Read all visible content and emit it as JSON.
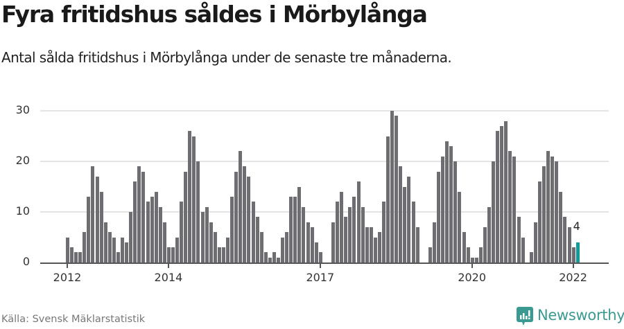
{
  "header": {
    "title": "Fyra fritidshus såldes i Mörbylånga",
    "subtitle": "Antal sålda fritidshus i Mörbylånga under de senaste tre månaderna."
  },
  "footer": {
    "source": "Källa: Svensk Mäklarstatistik",
    "brand": "Newsworthy"
  },
  "colors": {
    "bar": "#6e6d72",
    "highlight": "#119a97",
    "grid": "#e4e4e4",
    "axis": "#555555",
    "brand": "#3a9a92"
  },
  "chart_data": {
    "type": "bar",
    "title": "Fyra fritidshus såldes i Mörbylånga",
    "subtitle": "Antal sålda fritidshus i Mörbylånga under de senaste tre månaderna.",
    "xlabel": "",
    "ylabel": "",
    "ylim": [
      0,
      30
    ],
    "yticks": [
      0,
      10,
      20,
      30
    ],
    "xtick_labels": [
      "2012",
      "2014",
      "2017",
      "2020",
      "2022"
    ],
    "grid": true,
    "legend": null,
    "x_start": "2012-01",
    "x_end": "2022-02",
    "frequency": "monthly",
    "values": [
      5,
      3,
      2,
      2,
      6,
      13,
      19,
      17,
      14,
      8,
      6,
      5,
      2,
      5,
      4,
      10,
      16,
      19,
      18,
      12,
      13,
      14,
      11,
      8,
      3,
      3,
      5,
      12,
      18,
      26,
      25,
      20,
      10,
      11,
      8,
      6,
      3,
      3,
      5,
      13,
      18,
      22,
      19,
      17,
      12,
      9,
      6,
      2,
      1,
      2,
      1,
      5,
      6,
      13,
      13,
      15,
      11,
      8,
      7,
      4,
      2,
      0,
      0,
      8,
      12,
      14,
      9,
      11,
      13,
      16,
      11,
      7,
      7,
      5,
      6,
      12,
      25,
      30,
      29,
      19,
      15,
      17,
      12,
      7,
      0,
      0,
      3,
      8,
      18,
      21,
      24,
      23,
      20,
      14,
      6,
      3,
      1,
      1,
      3,
      7,
      11,
      20,
      26,
      27,
      28,
      22,
      21,
      9,
      5,
      0,
      2,
      8,
      16,
      19,
      22,
      21,
      20,
      14,
      9,
      7,
      3,
      4
    ],
    "highlight_index": 121,
    "annotation": {
      "label": "4",
      "index": 121
    }
  }
}
